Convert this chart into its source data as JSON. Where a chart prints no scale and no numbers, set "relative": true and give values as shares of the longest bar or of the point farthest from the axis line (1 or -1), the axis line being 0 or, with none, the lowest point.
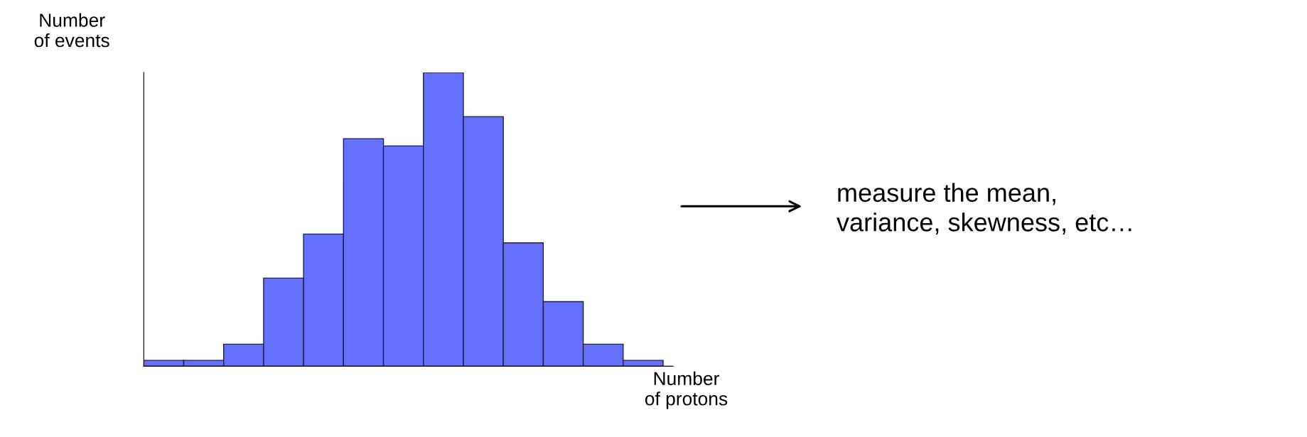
{
  "chart_data": {
    "type": "bar",
    "relative": true,
    "categories": [
      null,
      null,
      null,
      null,
      null,
      null,
      null,
      null,
      null,
      null,
      null,
      null,
      null
    ],
    "series": [
      {
        "color": "#6670ff",
        "values": [
          0.02,
          0.02,
          0.075,
          0.3,
          0.45,
          0.775,
          0.75,
          1,
          0.85,
          0.42,
          0.22,
          0.075,
          0.02
        ]
      }
    ],
    "xlabel": "Number\nof protons",
    "ylabel": "Number\nof events",
    "annotations": [
      "measure the mean,\nvariance, skewness, etc…"
    ],
    "grid": false,
    "legend": false
  }
}
